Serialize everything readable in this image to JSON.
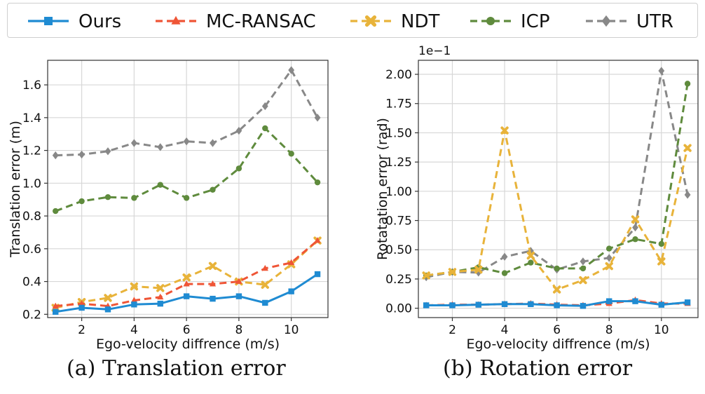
{
  "legend": [
    {
      "name": "Ours",
      "color": "#1f8bd2",
      "marker": "square"
    },
    {
      "name": "MC-RANSAC",
      "color": "#ef5536",
      "marker": "triangle"
    },
    {
      "name": "NDT",
      "color": "#e8b33a",
      "marker": "x"
    },
    {
      "name": "ICP",
      "color": "#5f8b3d",
      "marker": "circle"
    },
    {
      "name": "UTR",
      "color": "#888888",
      "marker": "diamond"
    }
  ],
  "captions": {
    "a": "(a) Translation error",
    "b": "(b) Rotation error"
  },
  "chart_data": [
    {
      "type": "line",
      "title": "",
      "xlabel": "Ego-velocity diffrence (m/s)",
      "ylabel": "Translation error (m)",
      "xlim": [
        0.7,
        11.4
      ],
      "ylim": [
        0.18,
        1.75
      ],
      "xticks": [
        2,
        4,
        6,
        8,
        10
      ],
      "yticks": [
        0.2,
        0.4,
        0.6,
        0.8,
        1.0,
        1.2,
        1.4,
        1.6
      ],
      "ytick_labels": [
        "0.2",
        "0.4",
        "0.6",
        "0.8",
        "1.0",
        "1.2",
        "1.4",
        "1.6"
      ],
      "grid": true,
      "x": [
        1,
        2,
        3,
        4,
        5,
        6,
        7,
        8,
        9,
        10,
        11
      ],
      "series": [
        {
          "name": "Ours",
          "values": [
            0.215,
            0.24,
            0.23,
            0.26,
            0.265,
            0.31,
            0.295,
            0.31,
            0.27,
            0.34,
            0.445
          ]
        },
        {
          "name": "MC-RANSAC",
          "values": [
            0.25,
            0.265,
            0.25,
            0.285,
            0.305,
            0.385,
            0.385,
            0.4,
            0.48,
            0.515,
            0.65
          ]
        },
        {
          "name": "NDT",
          "values": [
            0.24,
            0.275,
            0.3,
            0.37,
            0.36,
            0.425,
            0.495,
            0.4,
            0.38,
            0.505,
            0.65
          ]
        },
        {
          "name": "ICP",
          "values": [
            0.83,
            0.89,
            0.915,
            0.91,
            0.99,
            0.91,
            0.96,
            1.09,
            1.335,
            1.18,
            1.005
          ]
        },
        {
          "name": "UTR",
          "values": [
            1.17,
            1.175,
            1.195,
            1.245,
            1.22,
            1.255,
            1.245,
            1.32,
            1.47,
            1.69,
            1.4
          ]
        }
      ]
    },
    {
      "type": "line",
      "title": "",
      "xlabel": "Ego-velocity diffrence (m/s)",
      "ylabel": "Rotatation error (rad)",
      "scale_label": "1e−1",
      "xlim": [
        0.7,
        11.4
      ],
      "ylim": [
        -0.08,
        2.12
      ],
      "xticks": [
        2,
        4,
        6,
        8,
        10
      ],
      "yticks": [
        0,
        0.25,
        0.5,
        0.75,
        1.0,
        1.25,
        1.5,
        1.75,
        2.0
      ],
      "ytick_labels": [
        "0.00",
        "0.25",
        "0.50",
        "0.75",
        "1.00",
        "1.25",
        "1.50",
        "1.75",
        "2.00"
      ],
      "grid": true,
      "x": [
        1,
        2,
        3,
        4,
        5,
        6,
        7,
        8,
        9,
        10,
        11
      ],
      "series": [
        {
          "name": "Ours",
          "values": [
            0.025,
            0.025,
            0.03,
            0.035,
            0.035,
            0.025,
            0.02,
            0.06,
            0.06,
            0.03,
            0.05
          ]
        },
        {
          "name": "MC-RANSAC",
          "values": [
            0.025,
            0.03,
            0.03,
            0.035,
            0.04,
            0.03,
            0.025,
            0.04,
            0.07,
            0.04,
            0.04
          ]
        },
        {
          "name": "NDT",
          "values": [
            0.28,
            0.31,
            0.33,
            1.52,
            0.45,
            0.16,
            0.24,
            0.36,
            0.76,
            0.4,
            1.37
          ]
        },
        {
          "name": "ICP",
          "values": [
            0.28,
            0.31,
            0.35,
            0.3,
            0.39,
            0.34,
            0.34,
            0.51,
            0.59,
            0.55,
            1.92
          ]
        },
        {
          "name": "UTR",
          "values": [
            0.265,
            0.31,
            0.305,
            0.44,
            0.49,
            0.33,
            0.4,
            0.43,
            0.69,
            2.03,
            0.97
          ]
        }
      ]
    }
  ]
}
